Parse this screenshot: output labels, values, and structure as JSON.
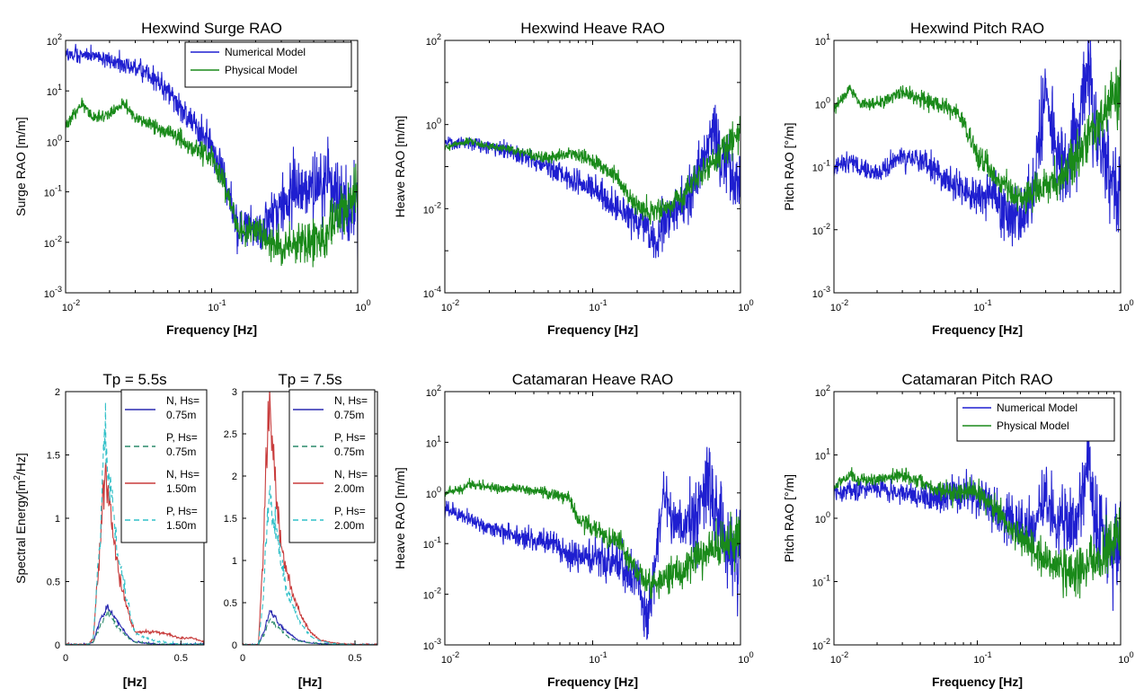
{
  "chart_data": [
    {
      "id": "p1",
      "type": "line",
      "title": "Hexwind Surge RAO",
      "xlabel": "Frequency [Hz]",
      "ylabel": "Surge RAO [m/m]",
      "xscale": "log",
      "yscale": "log",
      "xlim": [
        0.01,
        1
      ],
      "ylim": [
        0.001,
        100
      ],
      "legend_position": "top-right",
      "series": [
        {
          "name": "Numerical Model",
          "color": "#1f1fd0",
          "noise": 0.45,
          "x": [
            0.01,
            0.013,
            0.02,
            0.03,
            0.04,
            0.05,
            0.07,
            0.1,
            0.13,
            0.15,
            0.16,
            0.18,
            0.2,
            0.25,
            0.3,
            0.35,
            0.4,
            0.5,
            0.6,
            0.65,
            0.7,
            0.8,
            0.9,
            1.0
          ],
          "y": [
            50,
            55,
            40,
            30,
            20,
            10,
            3,
            0.8,
            0.1,
            0.02,
            0.015,
            0.03,
            0.015,
            0.03,
            0.05,
            0.1,
            0.1,
            0.1,
            0.15,
            0.3,
            0.1,
            0.05,
            0.03,
            0.1
          ]
        },
        {
          "name": "Physical Model",
          "color": "#1a8a1a",
          "noise": 0.3,
          "x": [
            0.01,
            0.013,
            0.015,
            0.02,
            0.025,
            0.03,
            0.04,
            0.05,
            0.07,
            0.1,
            0.13,
            0.15,
            0.16,
            0.2,
            0.25,
            0.3,
            0.4,
            0.5,
            0.6,
            0.7,
            0.8,
            0.9,
            1.0
          ],
          "y": [
            2,
            6,
            3,
            3.5,
            6,
            3,
            2,
            1.5,
            0.8,
            0.5,
            0.08,
            0.02,
            0.015,
            0.02,
            0.01,
            0.008,
            0.01,
            0.012,
            0.015,
            0.03,
            0.05,
            0.08,
            0.12
          ]
        }
      ]
    },
    {
      "id": "p2",
      "type": "line",
      "title": "Hexwind Heave RAO",
      "xlabel": "Frequency [Hz]",
      "ylabel": "Heave RAO [m/m]",
      "xscale": "log",
      "yscale": "log",
      "xlim": [
        0.01,
        1
      ],
      "ylim": [
        0.0001,
        100
      ],
      "series": [
        {
          "name": "Numerical Model",
          "color": "#1f1fd0",
          "noise": 0.45,
          "x": [
            0.01,
            0.015,
            0.02,
            0.03,
            0.05,
            0.07,
            0.1,
            0.15,
            0.2,
            0.25,
            0.27,
            0.3,
            0.4,
            0.5,
            0.6,
            0.65,
            0.7,
            0.8,
            0.9,
            1.0
          ],
          "y": [
            0.4,
            0.35,
            0.3,
            0.2,
            0.1,
            0.05,
            0.03,
            0.01,
            0.005,
            0.003,
            0.001,
            0.005,
            0.01,
            0.05,
            0.3,
            1,
            0.3,
            0.1,
            0.05,
            0.03
          ]
        },
        {
          "name": "Physical Model",
          "color": "#1a8a1a",
          "noise": 0.25,
          "x": [
            0.01,
            0.015,
            0.02,
            0.03,
            0.05,
            0.07,
            0.1,
            0.15,
            0.2,
            0.25,
            0.3,
            0.4,
            0.5,
            0.6,
            0.7,
            0.8,
            1.0
          ],
          "y": [
            0.3,
            0.4,
            0.3,
            0.25,
            0.15,
            0.2,
            0.15,
            0.05,
            0.01,
            0.008,
            0.01,
            0.02,
            0.05,
            0.1,
            0.2,
            0.3,
            0.6
          ]
        }
      ]
    },
    {
      "id": "p3",
      "type": "line",
      "title": "Hexwind Pitch RAO",
      "xlabel": "Frequency [Hz]",
      "ylabel": "Pitch RAO [°/m]",
      "xscale": "log",
      "yscale": "log",
      "xlim": [
        0.01,
        1
      ],
      "ylim": [
        0.001,
        10
      ],
      "series": [
        {
          "name": "Numerical Model",
          "color": "#1f1fd0",
          "noise": 0.45,
          "x": [
            0.01,
            0.013,
            0.02,
            0.03,
            0.05,
            0.07,
            0.1,
            0.13,
            0.15,
            0.2,
            0.25,
            0.3,
            0.33,
            0.4,
            0.5,
            0.6,
            0.65,
            0.7,
            0.8,
            0.9,
            1.0
          ],
          "y": [
            0.1,
            0.12,
            0.08,
            0.15,
            0.1,
            0.05,
            0.03,
            0.05,
            0.02,
            0.015,
            0.05,
            2,
            0.3,
            0.1,
            0.3,
            5,
            0.5,
            0.2,
            0.1,
            0.05,
            0.05
          ]
        },
        {
          "name": "Physical Model",
          "color": "#1a8a1a",
          "noise": 0.25,
          "x": [
            0.01,
            0.013,
            0.015,
            0.02,
            0.03,
            0.05,
            0.07,
            0.08,
            0.1,
            0.13,
            0.15,
            0.2,
            0.3,
            0.4,
            0.5,
            0.6,
            0.7,
            0.8,
            0.9,
            1.0
          ],
          "y": [
            0.8,
            1.8,
            1,
            1,
            1.5,
            1,
            0.8,
            0.5,
            0.15,
            0.08,
            0.05,
            0.03,
            0.05,
            0.08,
            0.15,
            0.3,
            0.5,
            0.8,
            1.2,
            2
          ]
        }
      ]
    },
    {
      "id": "p4",
      "type": "line",
      "title": "Tp = 5.5s",
      "xlabel": "[Hz]",
      "ylabel": "Spectral Energy[m²/Hz]",
      "xlim": [
        0,
        0.6
      ],
      "ylim": [
        0,
        2
      ],
      "xticks": [
        0,
        0.5
      ],
      "yticks": [
        0,
        0.5,
        1,
        1.5,
        2
      ],
      "legend_position": "top-right",
      "series": [
        {
          "name": "N, Hs= 0.75m",
          "color": "#2a2ab0",
          "dash": "",
          "noise": 0.12,
          "x": [
            0.1,
            0.12,
            0.15,
            0.18,
            0.2,
            0.22,
            0.25,
            0.28,
            0.3,
            0.35,
            0.4,
            0.5,
            0.6
          ],
          "y": [
            0,
            0.02,
            0.2,
            0.3,
            0.25,
            0.2,
            0.12,
            0.05,
            0.02,
            0.01,
            0,
            0,
            0
          ]
        },
        {
          "name": "P, Hs= 0.75m",
          "color": "#2a8a6a",
          "dash": "6,4",
          "noise": 0.12,
          "x": [
            0.1,
            0.12,
            0.15,
            0.18,
            0.2,
            0.22,
            0.25,
            0.28,
            0.3,
            0.35,
            0.4,
            0.5,
            0.6
          ],
          "y": [
            0,
            0.02,
            0.15,
            0.25,
            0.22,
            0.15,
            0.1,
            0.04,
            0.02,
            0.01,
            0,
            0,
            0
          ]
        },
        {
          "name": "N, Hs= 1.50m",
          "color": "#c83c3c",
          "dash": "",
          "noise": 0.15,
          "x": [
            0.1,
            0.12,
            0.15,
            0.17,
            0.18,
            0.2,
            0.22,
            0.25,
            0.28,
            0.3,
            0.35,
            0.4,
            0.45,
            0.5,
            0.55,
            0.6
          ],
          "y": [
            0,
            0.05,
            0.8,
            1.3,
            1.2,
            1.0,
            0.7,
            0.4,
            0.2,
            0.1,
            0.1,
            0.1,
            0.08,
            0.05,
            0.05,
            0.02
          ]
        },
        {
          "name": "P, Hs= 1.50m",
          "color": "#30c0c8",
          "dash": "6,4",
          "noise": 0.15,
          "x": [
            0.1,
            0.12,
            0.15,
            0.17,
            0.18,
            0.2,
            0.22,
            0.25,
            0.28,
            0.3,
            0.35,
            0.4,
            0.5,
            0.6
          ],
          "y": [
            0,
            0.05,
            0.9,
            1.7,
            1.4,
            1.2,
            0.8,
            0.5,
            0.25,
            0.1,
            0.05,
            0.02,
            0,
            0
          ]
        }
      ]
    },
    {
      "id": "p5",
      "type": "line",
      "title": "Tp = 7.5s",
      "xlabel": "[Hz]",
      "xlim": [
        0,
        0.6
      ],
      "ylim": [
        0,
        3
      ],
      "xticks": [
        0,
        0.5
      ],
      "yticks": [
        0,
        0.5,
        1,
        1.5,
        2,
        2.5,
        3
      ],
      "legend_position": "top-right",
      "series": [
        {
          "name": "N, Hs= 0.75m",
          "color": "#2a2ab0",
          "dash": "",
          "noise": 0.12,
          "x": [
            0.07,
            0.1,
            0.12,
            0.14,
            0.16,
            0.2,
            0.25,
            0.3,
            0.35,
            0.4,
            0.5,
            0.6
          ],
          "y": [
            0,
            0.2,
            0.4,
            0.35,
            0.25,
            0.15,
            0.05,
            0.02,
            0.01,
            0,
            0,
            0
          ]
        },
        {
          "name": "P, Hs= 0.75m",
          "color": "#2a8a6a",
          "dash": "6,4",
          "noise": 0.12,
          "x": [
            0.07,
            0.1,
            0.12,
            0.14,
            0.16,
            0.2,
            0.25,
            0.3,
            0.35,
            0.4,
            0.5,
            0.6
          ],
          "y": [
            0,
            0.15,
            0.3,
            0.25,
            0.2,
            0.1,
            0.04,
            0.02,
            0.01,
            0,
            0,
            0
          ]
        },
        {
          "name": "N, Hs= 2.00m",
          "color": "#c83c3c",
          "dash": "",
          "noise": 0.12,
          "x": [
            0.07,
            0.09,
            0.11,
            0.12,
            0.13,
            0.15,
            0.17,
            0.2,
            0.25,
            0.3,
            0.35,
            0.4,
            0.5,
            0.6
          ],
          "y": [
            0,
            1.0,
            2.5,
            2.8,
            2.5,
            1.8,
            1.2,
            0.8,
            0.4,
            0.15,
            0.05,
            0.02,
            0,
            0
          ]
        },
        {
          "name": "P, Hs= 2.00m",
          "color": "#30c0c8",
          "dash": "6,4",
          "noise": 0.12,
          "x": [
            0.07,
            0.09,
            0.11,
            0.12,
            0.13,
            0.15,
            0.17,
            0.2,
            0.25,
            0.3,
            0.35,
            0.4,
            0.5,
            0.6
          ],
          "y": [
            0,
            0.5,
            1.5,
            1.8,
            1.6,
            1.4,
            1.0,
            0.6,
            0.3,
            0.1,
            0.04,
            0.01,
            0,
            0
          ]
        }
      ]
    },
    {
      "id": "p6",
      "type": "line",
      "title": "Catamaran Heave RAO",
      "xlabel": "Frequency [Hz]",
      "ylabel": "Heave RAO [m/m]",
      "xscale": "log",
      "yscale": "log",
      "xlim": [
        0.01,
        1
      ],
      "ylim": [
        0.001,
        100
      ],
      "series": [
        {
          "name": "Numerical Model",
          "color": "#1f1fd0",
          "noise": 0.45,
          "x": [
            0.01,
            0.015,
            0.02,
            0.03,
            0.05,
            0.07,
            0.1,
            0.15,
            0.2,
            0.23,
            0.25,
            0.3,
            0.35,
            0.4,
            0.5,
            0.6,
            0.65,
            0.7,
            0.8,
            0.9,
            1.0
          ],
          "y": [
            0.5,
            0.3,
            0.2,
            0.15,
            0.1,
            0.06,
            0.05,
            0.04,
            0.02,
            0.003,
            0.01,
            1,
            0.3,
            0.2,
            0.3,
            3,
            0.5,
            0.3,
            0.1,
            0.05,
            0.05
          ]
        },
        {
          "name": "Physical Model",
          "color": "#1a8a1a",
          "noise": 0.25,
          "x": [
            0.01,
            0.013,
            0.015,
            0.02,
            0.03,
            0.05,
            0.07,
            0.08,
            0.1,
            0.15,
            0.2,
            0.25,
            0.3,
            0.4,
            0.5,
            0.6,
            0.7,
            0.8,
            1.0
          ],
          "y": [
            1,
            1.2,
            1.5,
            1.3,
            1.2,
            1,
            0.8,
            0.3,
            0.2,
            0.1,
            0.03,
            0.015,
            0.02,
            0.03,
            0.05,
            0.07,
            0.08,
            0.1,
            0.15
          ]
        }
      ]
    },
    {
      "id": "p7",
      "type": "line",
      "title": "Catamaran Pitch RAO",
      "xlabel": "Frequency [Hz]",
      "ylabel": "Pitch RAO [°/m]",
      "xscale": "log",
      "yscale": "log",
      "xlim": [
        0.01,
        1
      ],
      "ylim": [
        0.01,
        100
      ],
      "legend_position": "top-right",
      "series": [
        {
          "name": "Numerical Model",
          "color": "#1f1fd0",
          "noise": 0.4,
          "x": [
            0.01,
            0.015,
            0.02,
            0.03,
            0.05,
            0.07,
            0.1,
            0.13,
            0.15,
            0.2,
            0.25,
            0.3,
            0.33,
            0.4,
            0.5,
            0.6,
            0.65,
            0.7,
            0.8,
            0.9,
            1.0
          ],
          "y": [
            2.5,
            2.8,
            3,
            2.5,
            2,
            2.5,
            2.5,
            1.5,
            1,
            0.8,
            0.8,
            3,
            1,
            0.7,
            1,
            10,
            1,
            0.8,
            0.5,
            0.3,
            0.5
          ]
        },
        {
          "name": "Physical Model",
          "color": "#1a8a1a",
          "noise": 0.25,
          "x": [
            0.01,
            0.013,
            0.015,
            0.02,
            0.03,
            0.05,
            0.07,
            0.1,
            0.13,
            0.15,
            0.2,
            0.25,
            0.3,
            0.4,
            0.5,
            0.6,
            0.7,
            0.8,
            1.0
          ],
          "y": [
            3,
            5,
            4,
            4,
            5,
            3,
            2.5,
            2.5,
            1.5,
            1,
            0.5,
            0.3,
            0.2,
            0.15,
            0.15,
            0.2,
            0.2,
            0.3,
            0.7
          ]
        }
      ]
    }
  ]
}
